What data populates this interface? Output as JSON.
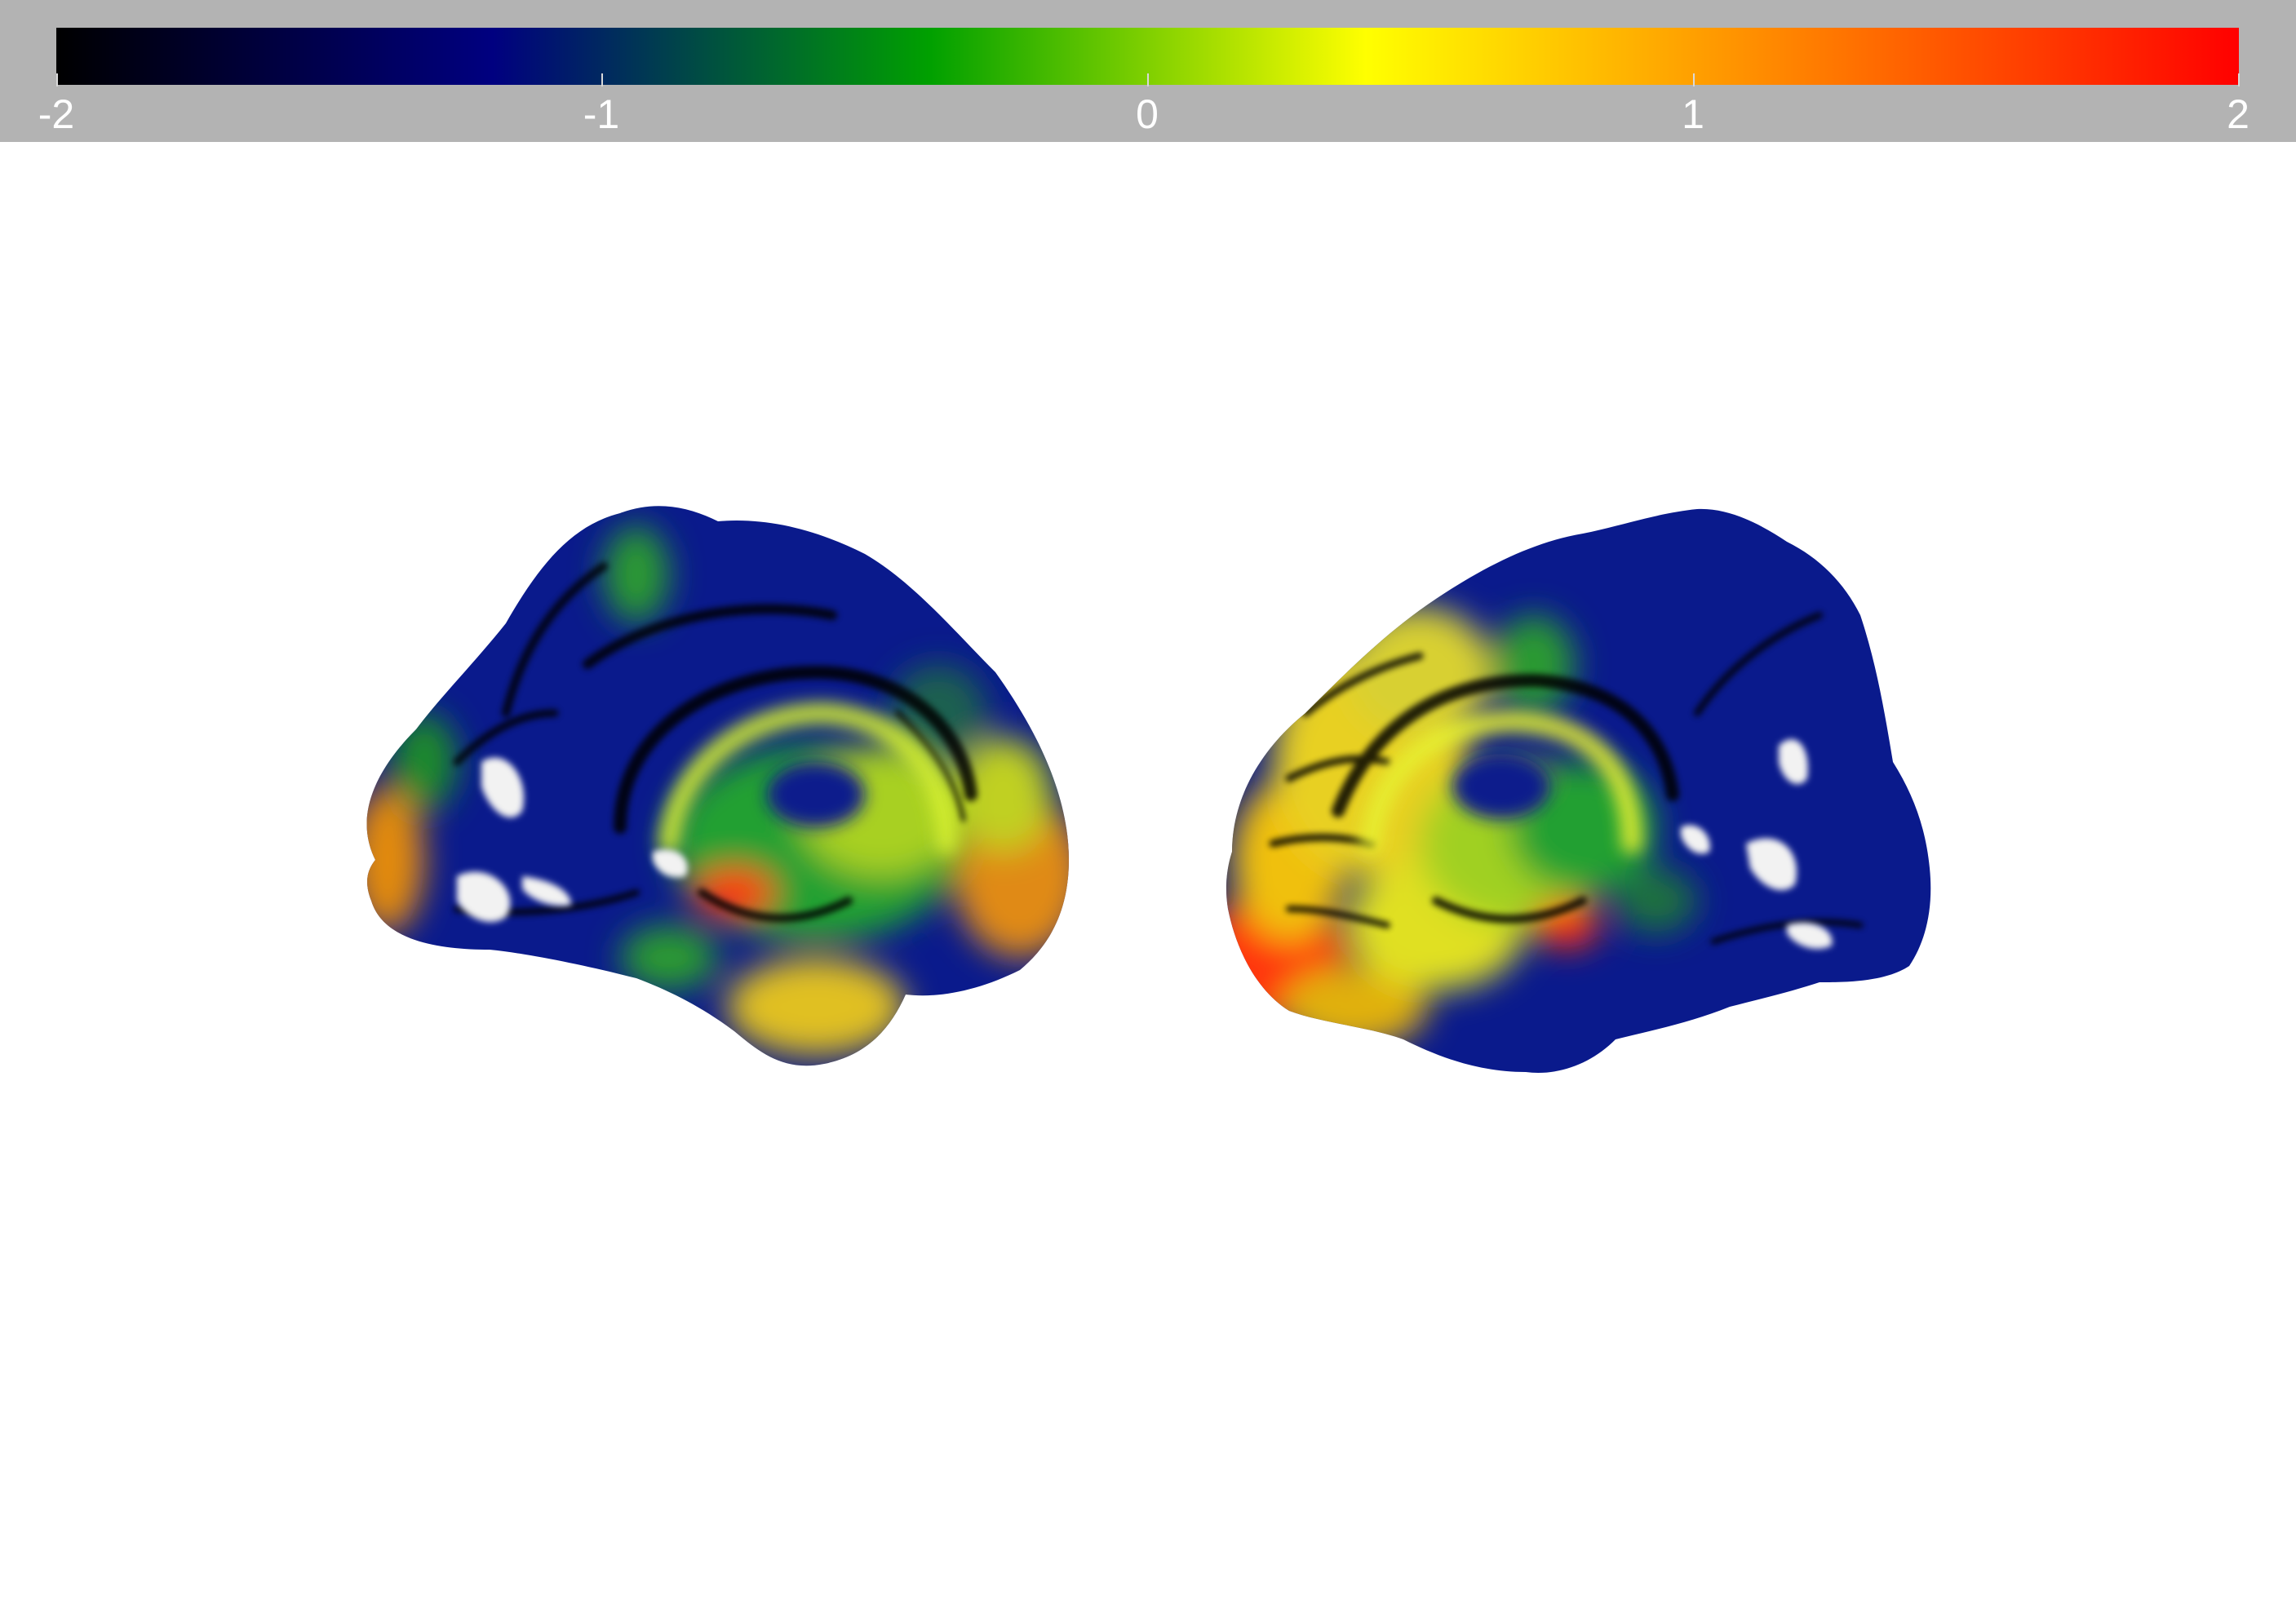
{
  "colorbar": {
    "stops": [
      "#000000",
      "#000080",
      "#00a000",
      "#ffff00",
      "#ff8000",
      "#ff0000"
    ],
    "ticks": [
      {
        "value": -2,
        "label": "-2"
      },
      {
        "value": -1,
        "label": "-1"
      },
      {
        "value": 0,
        "label": "0"
      },
      {
        "value": 1,
        "label": "1"
      },
      {
        "value": 2,
        "label": "2"
      }
    ],
    "range": [
      -2,
      2
    ]
  },
  "hemispheres": [
    {
      "view": "medial",
      "side": "left"
    },
    {
      "view": "medial",
      "side": "right"
    }
  ],
  "colors": {
    "panel": "#b3b3b3",
    "surface_base": "#0a1a8c",
    "unlabeled": "#f2f2f2",
    "sulcus": "#000000"
  }
}
